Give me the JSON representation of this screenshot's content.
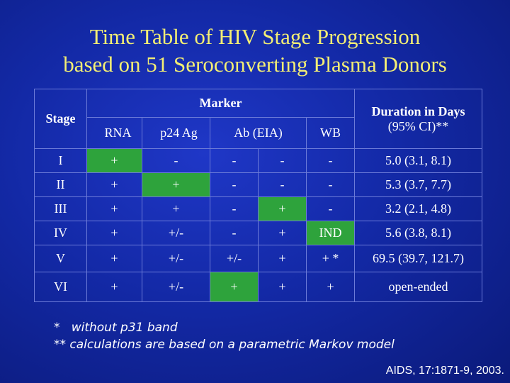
{
  "title": {
    "line1": "Time Table of HIV Stage Progression",
    "line2": "based on 51 Seroconverting Plasma Donors"
  },
  "table": {
    "stage_header": "Stage",
    "marker_header": "Marker",
    "duration_header_line1": "Duration in Days",
    "duration_header_line2": "(95% CI)**",
    "sub_headers": [
      "RNA",
      "p24 Ag",
      "Ab (EIA)",
      "WB"
    ],
    "rows": [
      {
        "stage": "I",
        "rna": "+",
        "p24": "-",
        "ab1": "-",
        "ab2": "-",
        "wb": "-",
        "duration": "5.0 (3.1, 8.1)"
      },
      {
        "stage": "II",
        "rna": "+",
        "p24": "+",
        "ab1": "-",
        "ab2": "-",
        "wb": "-",
        "duration": "5.3 (3.7, 7.7)"
      },
      {
        "stage": "III",
        "rna": "+",
        "p24": "+",
        "ab1": "-",
        "ab2": "+",
        "wb": "-",
        "duration": "3.2 (2.1, 4.8)"
      },
      {
        "stage": "IV",
        "rna": "+",
        "p24": "+/-",
        "ab1": "-",
        "ab2": "+",
        "wb": "IND",
        "duration": "5.6 (3.8, 8.1)"
      },
      {
        "stage": "V",
        "rna": "+",
        "p24": "+/-",
        "ab1": "+/-",
        "ab2": "+",
        "wb": "+ *",
        "duration": "69.5 (39.7, 121.7)"
      },
      {
        "stage": "VI",
        "rna": "+",
        "p24": "+/-",
        "ab1": "+",
        "ab2": "+",
        "wb": "+",
        "duration": "open-ended"
      }
    ]
  },
  "footnotes": {
    "note1": "*   without p31 band",
    "note2": "** calculations are based on a parametric Markov model"
  },
  "citation": "AIDS, 17:1871-9, 2003.",
  "colors": {
    "title": "#f3ee74",
    "highlight": "#2ea33c",
    "background": "#1329a6"
  }
}
